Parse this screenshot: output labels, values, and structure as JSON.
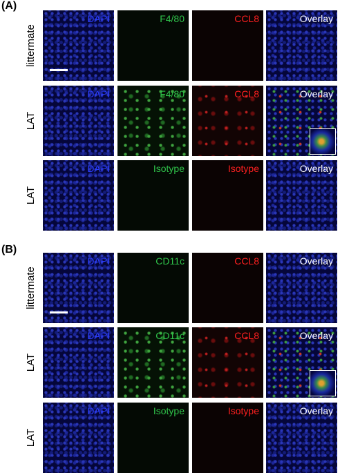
{
  "panels": [
    {
      "label": "(A)",
      "rows": [
        {
          "label": "littermate",
          "tiles": [
            "DAPI",
            "F4/80",
            "CCL8",
            "Overlay"
          ]
        },
        {
          "label": "LAT",
          "tiles": [
            "DAPI",
            "F4/80",
            "CCL8",
            "Overlay"
          ]
        },
        {
          "label": "LAT",
          "tiles": [
            "DAPI",
            "Isotype",
            "Isotype",
            "Overlay"
          ]
        }
      ]
    },
    {
      "label": "(B)",
      "rows": [
        {
          "label": "littermate",
          "tiles": [
            "DAPI",
            "CD11c",
            "CCL8",
            "Overlay"
          ]
        },
        {
          "label": "LAT",
          "tiles": [
            "DAPI",
            "CD11c",
            "CCL8",
            "Overlay"
          ]
        },
        {
          "label": "LAT",
          "tiles": [
            "DAPI",
            "Isotype",
            "Isotype",
            "Overlay"
          ]
        }
      ]
    }
  ]
}
